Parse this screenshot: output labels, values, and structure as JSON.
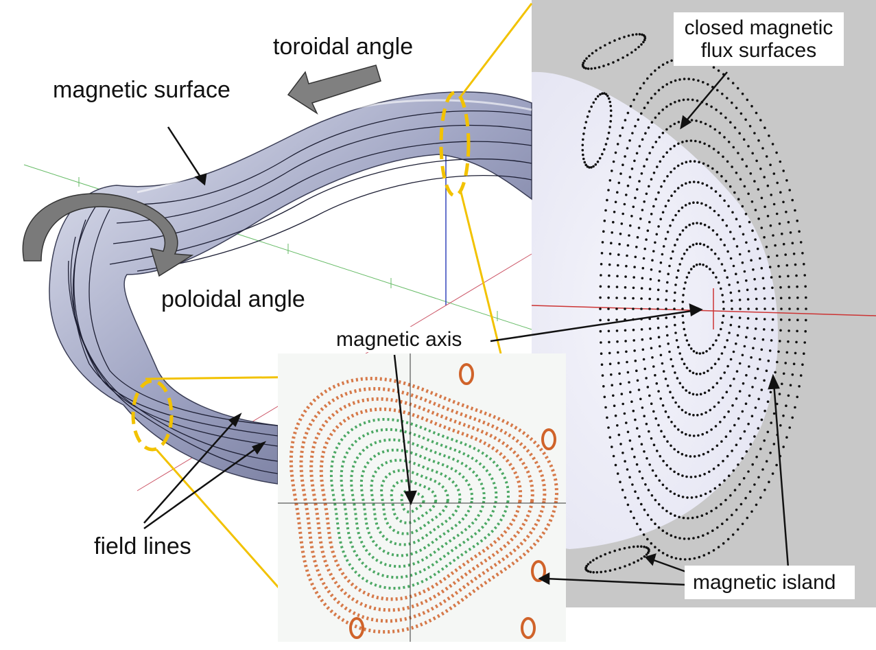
{
  "labels": {
    "toroidal_angle": "toroidal angle",
    "magnetic_surface": "magnetic surface",
    "poloidal_angle": "poloidal angle",
    "magnetic_axis": "magnetic axis",
    "field_lines": "field lines",
    "closed_flux_line1": "closed magnetic",
    "closed_flux_line2": "flux surfaces",
    "magnetic_island": "magnetic island"
  },
  "colors": {
    "highlight": "#f2c200",
    "surface": "#8a8fb0",
    "panel_bg": "#c8c8c8",
    "arrow": "#7a7a7a",
    "poincare_green": "#2e9a4a",
    "poincare_orange": "#d0632a"
  }
}
